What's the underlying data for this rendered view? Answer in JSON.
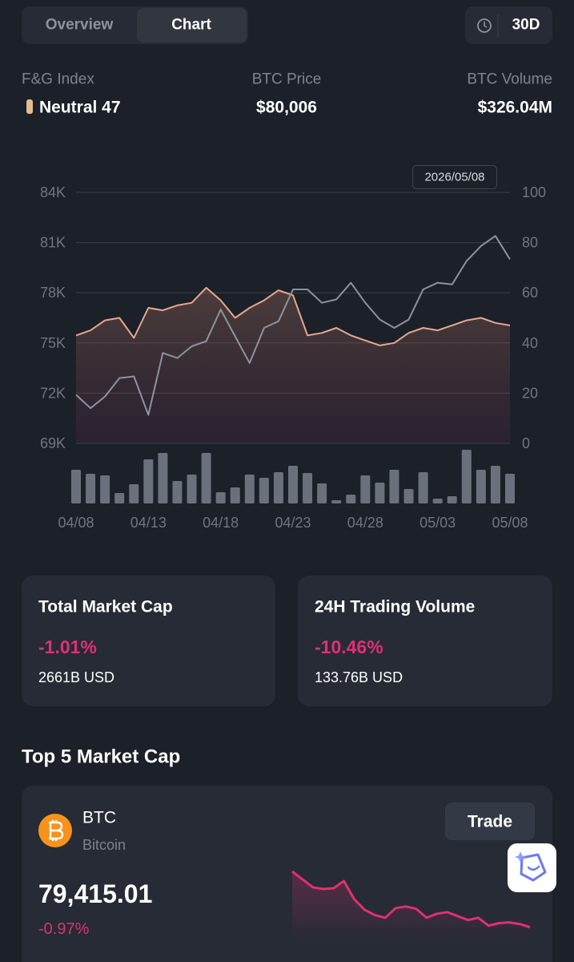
{
  "tabs": [
    "Overview",
    "Chart"
  ],
  "period": "30D",
  "stats": [
    {
      "label": "F&G Index",
      "value": "Neutral 47"
    },
    {
      "label": "BTC Price",
      "value": "$80,006"
    },
    {
      "label": "BTC Volume",
      "value": "$326.04M"
    }
  ],
  "chart_data": {
    "type": "line",
    "tooltip_date": "2026/05/08",
    "categories": [
      "04/08",
      null,
      null,
      null,
      null,
      "04/13",
      null,
      null,
      null,
      null,
      "04/18",
      null,
      null,
      null,
      null,
      "04/23",
      null,
      null,
      null,
      null,
      "04/28",
      null,
      null,
      null,
      null,
      "05/03",
      null,
      null,
      null,
      null,
      "05/08"
    ],
    "ylim": [
      69000,
      84000
    ],
    "yticks": [
      {
        "value": 69000,
        "label": "69K"
      },
      {
        "value": 72000,
        "label": "72K"
      },
      {
        "value": 75000,
        "label": "75K"
      },
      {
        "value": 78000,
        "label": "78K"
      },
      {
        "value": 81000,
        "label": "81K"
      },
      {
        "value": 84000,
        "label": "84K"
      }
    ],
    "y2lim": [
      0,
      100
    ],
    "y2ticks": [
      0,
      20,
      40,
      60,
      80,
      100
    ],
    "vlim": [
      0,
      70
    ],
    "grid": true,
    "series": [
      {
        "type": "bar",
        "axis": "volume",
        "color": "#6b717c",
        "values": [
          42,
          37,
          35,
          13,
          24,
          55,
          63,
          28,
          36,
          63,
          14,
          20,
          36,
          32,
          39,
          47,
          38,
          25,
          4,
          11,
          35,
          26,
          42,
          18,
          39,
          6,
          9,
          67,
          42,
          47,
          37
        ]
      },
      {
        "type": "line",
        "axis": "y2",
        "color": "#e6a88c",
        "fill": true,
        "values": [
          43,
          45,
          49,
          50,
          42,
          54,
          53,
          55,
          56,
          62,
          57,
          50,
          54,
          57,
          61,
          59,
          43,
          44,
          46,
          43,
          41,
          39,
          40,
          44,
          46,
          45,
          47,
          49,
          50,
          48,
          47
        ]
      },
      {
        "type": "line",
        "axis": "y",
        "color": "#8d939d",
        "values": [
          71900,
          71100,
          71800,
          72900,
          73000,
          70700,
          74400,
          74100,
          74800,
          75100,
          77000,
          75400,
          73800,
          75900,
          76300,
          78200,
          78200,
          77400,
          77600,
          78600,
          77400,
          76400,
          75900,
          76400,
          78200,
          78600,
          78500,
          79900,
          80800,
          81400,
          80000
        ]
      }
    ]
  },
  "market": [
    {
      "title": "Total Market Cap",
      "change": "-1.01%",
      "value": "2661B USD"
    },
    {
      "title": "24H Trading Volume",
      "change": "-10.46%",
      "value": "133.76B USD"
    }
  ],
  "top5": {
    "title": "Top 5 Market Cap",
    "coins": [
      {
        "symbol": "BTC",
        "name": "Bitcoin",
        "action": "Trade",
        "price": "79,415.01",
        "change": "-0.97%",
        "sparkline": {
          "color": "#e0306f",
          "ylim": [
            79400,
            81800
          ],
          "values": [
            81800,
            81460,
            81120,
            81050,
            81080,
            81390,
            80610,
            80160,
            79930,
            79820,
            80230,
            80300,
            80200,
            79820,
            79990,
            80060,
            79890,
            79720,
            79820,
            79480,
            79590,
            79620,
            79550,
            79415
          ]
        }
      }
    ]
  }
}
